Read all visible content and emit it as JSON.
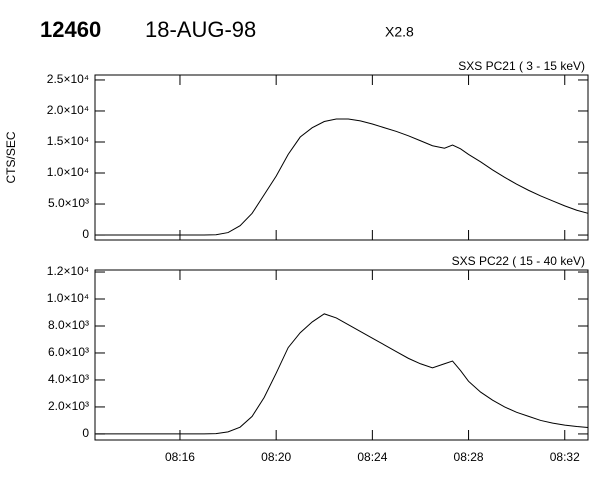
{
  "header": {
    "id": "12460",
    "date": "18-AUG-98",
    "class": "X2.8"
  },
  "chart_data": [
    {
      "type": "line",
      "title": "SXS PC21  (  3 - 15 keV)",
      "ylabel": "CTS/SEC",
      "color": "#000000",
      "x": [
        "08:12:30",
        "08:17:00",
        "08:17:30",
        "08:18:00",
        "08:18:30",
        "08:19:00",
        "08:19:30",
        "08:20:00",
        "08:20:30",
        "08:21:00",
        "08:21:30",
        "08:22:00",
        "08:22:30",
        "08:23:00",
        "08:23:30",
        "08:24:00",
        "08:24:30",
        "08:25:00",
        "08:25:30",
        "08:26:00",
        "08:26:30",
        "08:27:00",
        "08:27:20",
        "08:27:40",
        "08:28:00",
        "08:28:30",
        "08:29:00",
        "08:29:30",
        "08:30:00",
        "08:30:30",
        "08:31:00",
        "08:31:30",
        "08:32:00",
        "08:32:30",
        "08:32:58"
      ],
      "values": [
        0,
        0,
        50,
        400,
        1500,
        3500,
        6500,
        9500,
        13000,
        15800,
        17300,
        18300,
        18700,
        18700,
        18400,
        17900,
        17300,
        16700,
        16000,
        15200,
        14400,
        14000,
        14500,
        13900,
        13000,
        11800,
        10500,
        9300,
        8200,
        7200,
        6300,
        5500,
        4700,
        4000,
        3500
      ],
      "xlim": [
        "08:12:28",
        "08:32:58"
      ],
      "ylim": [
        -800,
        25800
      ],
      "yticks": [
        0,
        {
          "value": 5000,
          "label": "5.0×10³"
        },
        {
          "value": 10000,
          "label": "1.0×10⁴"
        },
        {
          "value": 15000,
          "label": "1.5×10⁴"
        },
        {
          "value": 20000,
          "label": "2.0×10⁴"
        },
        {
          "value": 25000,
          "label": "2.5×10⁴"
        }
      ]
    },
    {
      "type": "line",
      "title": "SXS PC22  ( 15 - 40 keV)",
      "color": "#000000",
      "x": [
        "08:12:30",
        "08:17:00",
        "08:17:30",
        "08:18:00",
        "08:18:30",
        "08:19:00",
        "08:19:30",
        "08:20:00",
        "08:20:30",
        "08:21:00",
        "08:21:30",
        "08:22:00",
        "08:22:30",
        "08:23:00",
        "08:23:30",
        "08:24:00",
        "08:24:30",
        "08:25:00",
        "08:25:30",
        "08:26:00",
        "08:26:30",
        "08:27:00",
        "08:27:20",
        "08:27:40",
        "08:28:00",
        "08:28:30",
        "08:29:00",
        "08:29:30",
        "08:30:00",
        "08:30:30",
        "08:31:00",
        "08:31:30",
        "08:32:00",
        "08:32:30",
        "08:32:58"
      ],
      "values": [
        0,
        0,
        20,
        150,
        500,
        1300,
        2700,
        4500,
        6400,
        7500,
        8300,
        8900,
        8600,
        8100,
        7600,
        7100,
        6600,
        6100,
        5600,
        5200,
        4900,
        5200,
        5400,
        4700,
        3900,
        3100,
        2500,
        2000,
        1600,
        1300,
        1000,
        800,
        650,
        550,
        480
      ],
      "xlim": [
        "08:12:28",
        "08:32:58"
      ],
      "xticks": [
        {
          "value": "08:16:00",
          "label": "08:16"
        },
        {
          "value": "08:20:00",
          "label": "08:20"
        },
        {
          "value": "08:24:00",
          "label": "08:24"
        },
        {
          "value": "08:28:00",
          "label": "08:28"
        },
        {
          "value": "08:32:00",
          "label": "08:32"
        }
      ],
      "ylim": [
        -450,
        12150
      ],
      "yticks": [
        0,
        {
          "value": 2000,
          "label": "2.0×10³"
        },
        {
          "value": 4000,
          "label": "4.0×10³"
        },
        {
          "value": 6000,
          "label": "6.0×10³"
        },
        {
          "value": 8000,
          "label": "8.0×10³"
        },
        {
          "value": 10000,
          "label": "1.0×10⁴"
        },
        {
          "value": 12000,
          "label": "1.2×10⁴"
        }
      ]
    }
  ]
}
